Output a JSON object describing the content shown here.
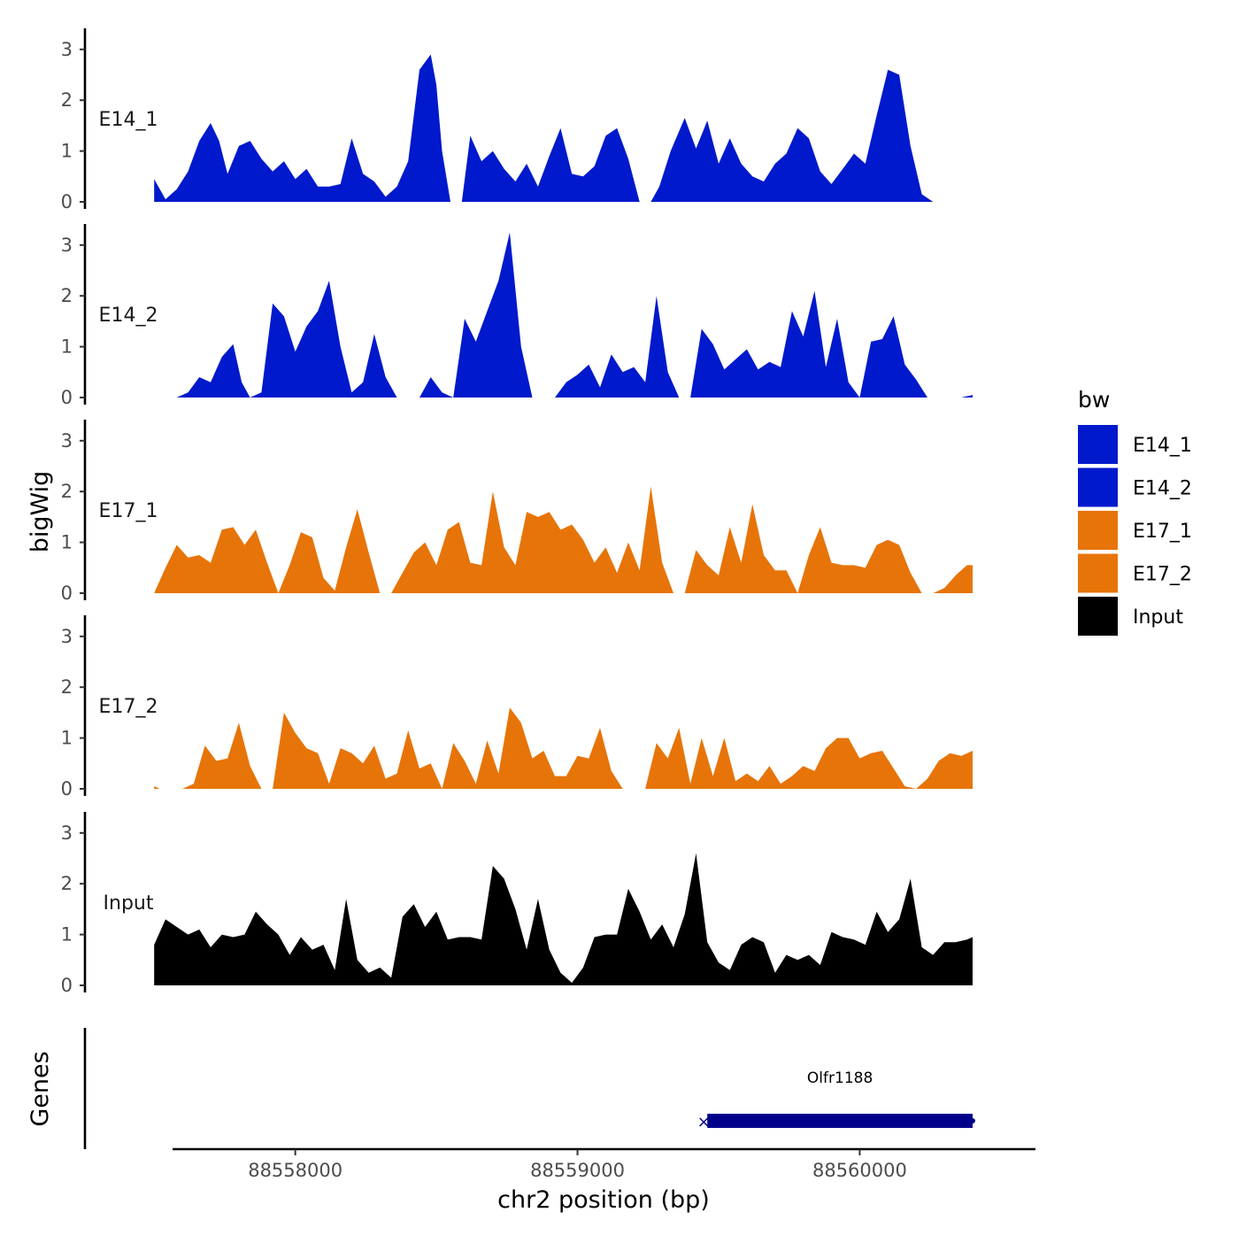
{
  "chart_data": {
    "type": "area",
    "title": "",
    "xlabel": "chr2 position (bp)",
    "ylabel": "bigWig",
    "genes_axis_label": "Genes",
    "x_ticks": [
      88558000,
      88559000,
      88560000
    ],
    "x_tick_labels": [
      "88558000",
      "88559000",
      "88560000"
    ],
    "xlim": [
      88557330,
      88560560
    ],
    "ylim": [
      0,
      3.4
    ],
    "y_ticks": [
      0,
      1,
      2,
      3
    ],
    "legend": {
      "title": "bw",
      "position": "right",
      "entries": [
        {
          "label": "E14_1",
          "color": "#0019CC"
        },
        {
          "label": "E14_2",
          "color": "#0019CC"
        },
        {
          "label": "E17_1",
          "color": "#E77408"
        },
        {
          "label": "E17_2",
          "color": "#E77408"
        },
        {
          "label": "Input",
          "color": "#000000"
        }
      ]
    },
    "series": [
      {
        "name": "E14_1",
        "color": "#0019CC",
        "x": [
          88557500,
          88557540,
          88557580,
          88557620,
          88557660,
          88557700,
          88557730,
          88557760,
          88557800,
          88557840,
          88557880,
          88557920,
          88557960,
          88558000,
          88558040,
          88558080,
          88558120,
          88558160,
          88558200,
          88558240,
          88558280,
          88558320,
          88558360,
          88558400,
          88558440,
          88558480,
          88558500,
          88558520,
          88558550,
          88558590,
          88558620,
          88558660,
          88558700,
          88558740,
          88558780,
          88558820,
          88558860,
          88558900,
          88558940,
          88558980,
          88559020,
          88559060,
          88559100,
          88559140,
          88559180,
          88559220,
          88559260,
          88559290,
          88559330,
          88559380,
          88559420,
          88559460,
          88559500,
          88559540,
          88559580,
          88559620,
          88559660,
          88559700,
          88559740,
          88559780,
          88559820,
          88559860,
          88559900,
          88559940,
          88559980,
          88560020,
          88560060,
          88560100,
          88560140,
          88560180,
          88560220,
          88560260,
          88560300,
          88560340,
          88560380,
          88560400
        ],
        "y": [
          0.45,
          0.05,
          0.25,
          0.6,
          1.2,
          1.55,
          1.2,
          0.55,
          1.1,
          1.2,
          0.85,
          0.6,
          0.8,
          0.45,
          0.65,
          0.3,
          0.3,
          0.35,
          1.25,
          0.55,
          0.4,
          0.1,
          0.3,
          0.8,
          2.6,
          2.9,
          2.3,
          1.0,
          0.0,
          0.0,
          1.3,
          0.8,
          1.0,
          0.65,
          0.4,
          0.75,
          0.3,
          0.9,
          1.45,
          0.55,
          0.5,
          0.7,
          1.3,
          1.45,
          0.85,
          0.0,
          0.0,
          0.3,
          1.0,
          1.65,
          1.05,
          1.6,
          0.75,
          1.25,
          0.75,
          0.5,
          0.4,
          0.75,
          0.95,
          1.45,
          1.25,
          0.6,
          0.35,
          0.65,
          0.95,
          0.75,
          1.7,
          2.6,
          2.5,
          1.1,
          0.15,
          0.0,
          0.0,
          0.0,
          0.0,
          0.0
        ]
      },
      {
        "name": "E14_2",
        "color": "#0019CC",
        "x": [
          88557540,
          88557580,
          88557620,
          88557660,
          88557700,
          88557740,
          88557780,
          88557810,
          88557840,
          88557880,
          88557920,
          88557960,
          88558000,
          88558040,
          88558080,
          88558120,
          88558160,
          88558200,
          88558240,
          88558280,
          88558320,
          88558360,
          88558400,
          88558440,
          88558480,
          88558520,
          88558560,
          88558600,
          88558640,
          88558680,
          88558720,
          88558760,
          88558800,
          88558840,
          88558880,
          88558920,
          88558960,
          88559000,
          88559040,
          88559080,
          88559120,
          88559160,
          88559200,
          88559240,
          88559280,
          88559320,
          88559360,
          88559400,
          88559440,
          88559480,
          88559520,
          88559560,
          88559600,
          88559640,
          88559680,
          88559720,
          88559760,
          88559800,
          88559840,
          88559880,
          88559920,
          88559960,
          88560000,
          88560040,
          88560080,
          88560120,
          88560160,
          88560200,
          88560240,
          88560280,
          88560320,
          88560360,
          88560400
        ],
        "y": [
          0.0,
          0.0,
          0.1,
          0.4,
          0.3,
          0.8,
          1.05,
          0.3,
          0.0,
          0.1,
          1.85,
          1.6,
          0.9,
          1.4,
          1.7,
          2.3,
          1.0,
          0.1,
          0.3,
          1.25,
          0.4,
          0.0,
          0.0,
          0.0,
          0.4,
          0.1,
          0.0,
          1.55,
          1.1,
          1.7,
          2.3,
          3.25,
          1.0,
          0.0,
          0.0,
          0.0,
          0.3,
          0.45,
          0.65,
          0.2,
          0.85,
          0.5,
          0.6,
          0.3,
          2.0,
          0.5,
          0.0,
          0.0,
          1.35,
          1.05,
          0.55,
          0.75,
          0.95,
          0.55,
          0.7,
          0.6,
          1.7,
          1.2,
          2.1,
          0.6,
          1.55,
          0.3,
          0.0,
          1.1,
          1.15,
          1.6,
          0.65,
          0.35,
          0.0,
          0.0,
          0.0,
          0.0,
          0.05
        ]
      },
      {
        "name": "E17_1",
        "color": "#E77408",
        "x": [
          88557500,
          88557540,
          88557580,
          88557620,
          88557660,
          88557700,
          88557740,
          88557780,
          88557820,
          88557860,
          88557900,
          88557940,
          88557980,
          88558020,
          88558060,
          88558100,
          88558140,
          88558180,
          88558220,
          88558260,
          88558300,
          88558340,
          88558380,
          88558420,
          88558460,
          88558500,
          88558540,
          88558580,
          88558620,
          88558660,
          88558700,
          88558740,
          88558780,
          88558820,
          88558860,
          88558900,
          88558940,
          88558980,
          88559020,
          88559060,
          88559100,
          88559140,
          88559180,
          88559220,
          88559260,
          88559300,
          88559340,
          88559380,
          88559420,
          88559460,
          88559500,
          88559540,
          88559580,
          88559620,
          88559660,
          88559700,
          88559740,
          88559780,
          88559820,
          88559860,
          88559900,
          88559940,
          88559980,
          88560020,
          88560060,
          88560100,
          88560140,
          88560180,
          88560220,
          88560260,
          88560300,
          88560340,
          88560380,
          88560400
        ],
        "y": [
          0.0,
          0.5,
          0.95,
          0.7,
          0.75,
          0.6,
          1.25,
          1.3,
          0.95,
          1.25,
          0.6,
          0.0,
          0.55,
          1.2,
          1.1,
          0.3,
          0.05,
          0.9,
          1.65,
          0.8,
          0.0,
          0.0,
          0.4,
          0.8,
          1.0,
          0.55,
          1.25,
          1.4,
          0.6,
          0.55,
          2.0,
          0.9,
          0.55,
          1.6,
          1.5,
          1.6,
          1.25,
          1.35,
          1.05,
          0.6,
          0.9,
          0.4,
          1.0,
          0.45,
          2.1,
          0.6,
          0.0,
          0.0,
          0.85,
          0.55,
          0.35,
          1.3,
          0.6,
          1.75,
          0.75,
          0.45,
          0.45,
          0.0,
          0.75,
          1.3,
          0.6,
          0.55,
          0.55,
          0.5,
          0.95,
          1.05,
          0.95,
          0.4,
          0.0,
          0.0,
          0.1,
          0.35,
          0.55,
          0.55
        ]
      },
      {
        "name": "E17_2",
        "color": "#E77408",
        "x": [
          88557500,
          88557520,
          88557560,
          88557600,
          88557640,
          88557680,
          88557720,
          88557760,
          88557800,
          88557840,
          88557880,
          88557920,
          88557960,
          88558000,
          88558040,
          88558080,
          88558120,
          88558160,
          88558200,
          88558240,
          88558280,
          88558320,
          88558360,
          88558400,
          88558440,
          88558480,
          88558520,
          88558560,
          88558600,
          88558640,
          88558680,
          88558720,
          88558760,
          88558800,
          88558840,
          88558880,
          88558920,
          88558960,
          88559000,
          88559040,
          88559080,
          88559120,
          88559160,
          88559200,
          88559240,
          88559280,
          88559320,
          88559360,
          88559400,
          88559440,
          88559480,
          88559520,
          88559560,
          88559600,
          88559640,
          88559680,
          88559720,
          88559760,
          88559800,
          88559840,
          88559880,
          88559920,
          88559960,
          88560000,
          88560040,
          88560080,
          88560120,
          88560160,
          88560200,
          88560240,
          88560280,
          88560320,
          88560360,
          88560400
        ],
        "y": [
          0.05,
          0.0,
          0.0,
          0.0,
          0.1,
          0.85,
          0.55,
          0.6,
          1.3,
          0.45,
          0.0,
          0.0,
          1.5,
          1.1,
          0.8,
          0.7,
          0.1,
          0.8,
          0.7,
          0.5,
          0.85,
          0.2,
          0.3,
          1.15,
          0.4,
          0.5,
          0.0,
          0.9,
          0.55,
          0.1,
          0.95,
          0.3,
          1.6,
          1.3,
          0.6,
          0.75,
          0.25,
          0.25,
          0.65,
          0.6,
          1.2,
          0.35,
          0.0,
          0.0,
          0.0,
          0.9,
          0.6,
          1.2,
          0.1,
          1.0,
          0.25,
          1.0,
          0.15,
          0.3,
          0.15,
          0.45,
          0.1,
          0.25,
          0.45,
          0.35,
          0.8,
          1.0,
          1.0,
          0.6,
          0.7,
          0.75,
          0.4,
          0.05,
          0.0,
          0.2,
          0.55,
          0.7,
          0.65,
          0.75
        ]
      },
      {
        "name": "Input",
        "color": "#000000",
        "x": [
          88557500,
          88557540,
          88557580,
          88557620,
          88557660,
          88557700,
          88557740,
          88557780,
          88557820,
          88557860,
          88557900,
          88557940,
          88557980,
          88558020,
          88558060,
          88558100,
          88558140,
          88558180,
          88558220,
          88558260,
          88558300,
          88558340,
          88558380,
          88558420,
          88558460,
          88558500,
          88558540,
          88558580,
          88558620,
          88558660,
          88558700,
          88558740,
          88558780,
          88558820,
          88558860,
          88558900,
          88558940,
          88558980,
          88559020,
          88559060,
          88559100,
          88559140,
          88559180,
          88559220,
          88559260,
          88559300,
          88559340,
          88559380,
          88559420,
          88559460,
          88559500,
          88559540,
          88559580,
          88559620,
          88559660,
          88559700,
          88559740,
          88559780,
          88559820,
          88559860,
          88559900,
          88559940,
          88559980,
          88560020,
          88560060,
          88560100,
          88560140,
          88560180,
          88560220,
          88560260,
          88560300,
          88560340,
          88560380,
          88560400
        ],
        "y": [
          0.8,
          1.3,
          1.15,
          1.0,
          1.1,
          0.75,
          1.0,
          0.95,
          1.0,
          1.45,
          1.2,
          1.0,
          0.6,
          0.95,
          0.7,
          0.8,
          0.3,
          1.7,
          0.5,
          0.25,
          0.35,
          0.15,
          1.35,
          1.6,
          1.15,
          1.45,
          0.9,
          0.95,
          0.95,
          0.9,
          2.35,
          2.1,
          1.5,
          0.7,
          1.7,
          0.7,
          0.25,
          0.05,
          0.35,
          0.95,
          1.0,
          1.0,
          1.9,
          1.45,
          0.9,
          1.2,
          0.75,
          1.4,
          2.6,
          0.85,
          0.45,
          0.3,
          0.8,
          0.95,
          0.85,
          0.25,
          0.6,
          0.5,
          0.6,
          0.4,
          1.05,
          0.95,
          0.9,
          0.8,
          1.45,
          1.05,
          1.3,
          2.1,
          0.75,
          0.6,
          0.85,
          0.85,
          0.9,
          0.95
        ]
      }
    ],
    "genes": [
      {
        "name": "Olfr1188",
        "start": 88559460,
        "end": 88560400,
        "color": "#00008B",
        "strand_marker": "×"
      }
    ]
  }
}
